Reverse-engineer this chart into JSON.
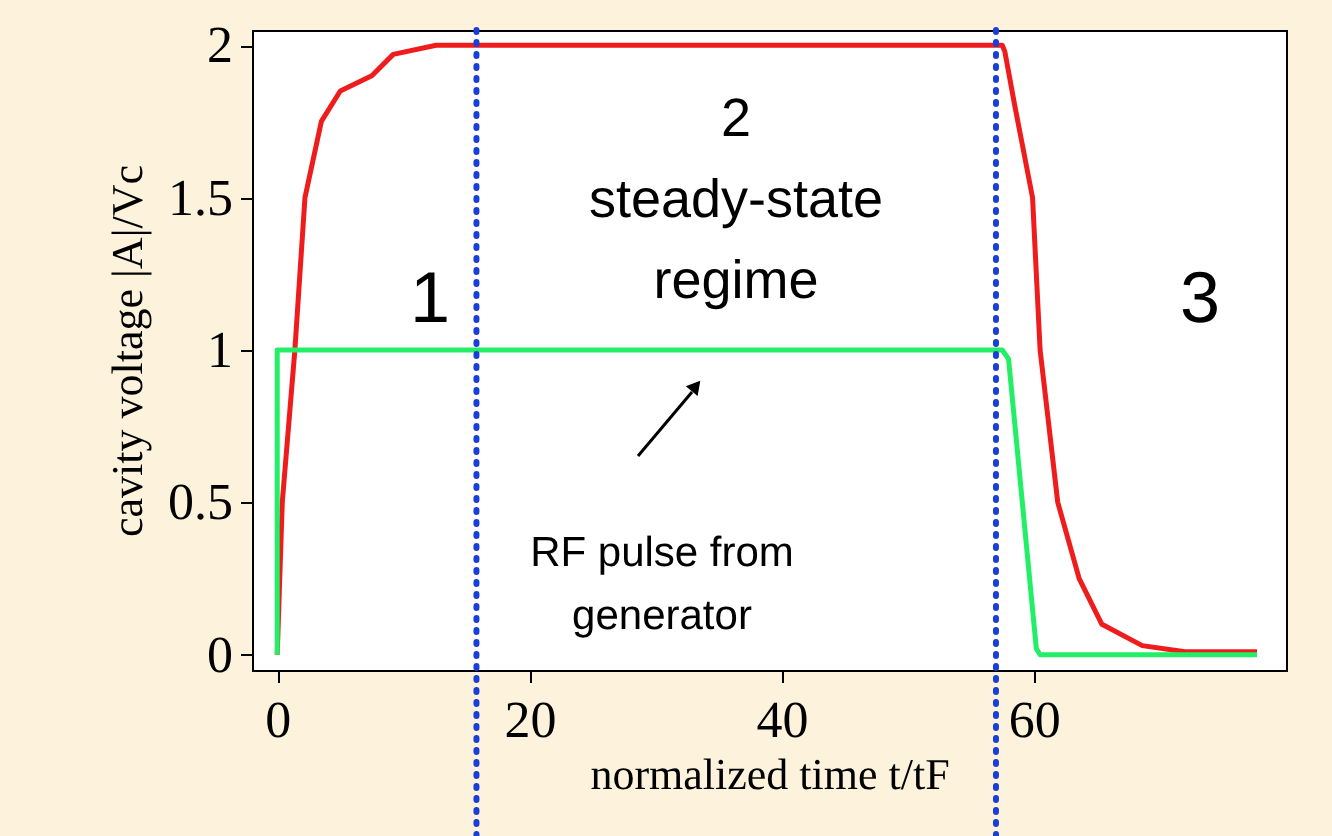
{
  "chart_data": {
    "type": "line",
    "xlabel": "normalized time t/tF",
    "ylabel": "cavity voltage |A|/Vc",
    "xlim": [
      -2,
      80
    ],
    "xticks": [
      0,
      20,
      40,
      60
    ],
    "ylim": [
      -0.05,
      2.05
    ],
    "yticks": [
      0,
      0.5,
      1,
      1.5,
      2
    ],
    "grid": false,
    "marker": "none",
    "line_style": "solid",
    "series": [
      {
        "color": "#ee1c1c",
        "x": [
          0,
          0.4,
          1.4,
          2.2,
          3.5,
          5,
          7.5,
          9.2,
          12.6,
          57.5,
          57.7,
          58.5,
          59.9,
          60.5,
          61.9,
          63.6,
          65.4,
          68.6,
          72,
          77.7
        ],
        "values": [
          0,
          0.5,
          1,
          1.5,
          1.75,
          1.85,
          1.9,
          1.97,
          2,
          2,
          1.98,
          1.8,
          1.5,
          1,
          0.5,
          0.25,
          0.1,
          0.03,
          0.01,
          0.01
        ]
      },
      {
        "color": "#22ee66",
        "x": [
          0,
          0,
          57.5,
          58,
          60.2,
          60.5,
          77.7
        ],
        "values": [
          0,
          1,
          1,
          0.97,
          0.02,
          0,
          0
        ]
      }
    ],
    "ref_lines": [
      {
        "axis": "x",
        "value": 15.8,
        "color": "#1a3fd6",
        "line_style": "dotted"
      },
      {
        "axis": "x",
        "value": 57,
        "color": "#1a3fd6",
        "line_style": "dotted"
      }
    ],
    "annotations": [
      "1",
      "2\nsteady-state\nregime",
      "3",
      "RF pulse from\ngenerator"
    ]
  }
}
